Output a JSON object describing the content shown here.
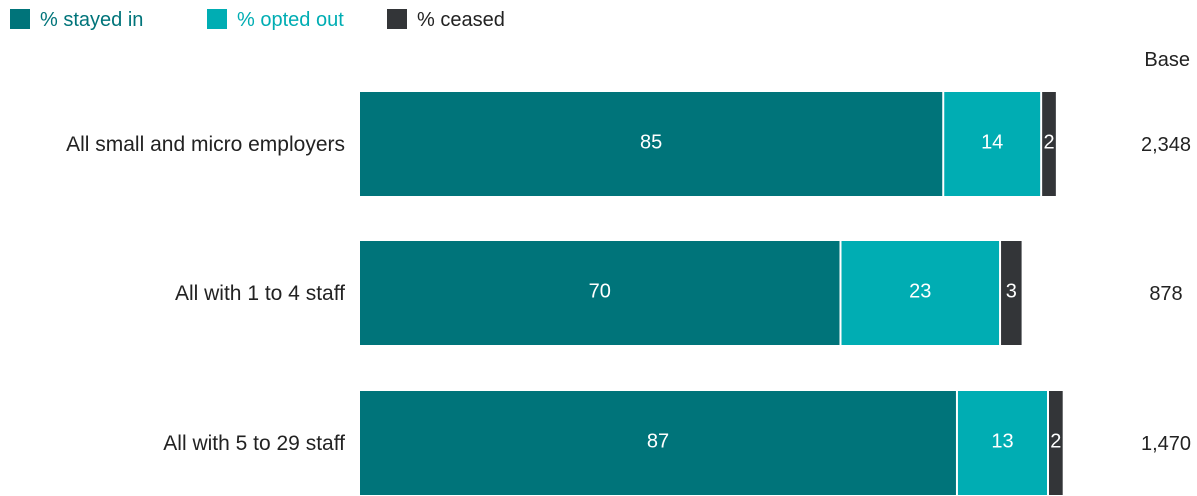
{
  "chart_data": {
    "type": "bar",
    "orientation": "horizontal",
    "stacked": true,
    "categories": [
      "All small and micro employers",
      "All with 1 to 4 staff",
      "All with 5 to 29 staff"
    ],
    "series": [
      {
        "name": "% stayed in",
        "values": [
          85,
          70,
          87
        ],
        "color": "#00747a"
      },
      {
        "name": "% opted out",
        "values": [
          14,
          23,
          13
        ],
        "color": "#00adb3"
      },
      {
        "name": "% ceased",
        "values": [
          2,
          3,
          2
        ],
        "color": "#333538"
      }
    ],
    "base": {
      "title": "Base",
      "values": [
        "2,348",
        "878",
        "1,470"
      ]
    },
    "legend_position": "top-left",
    "grid": false
  }
}
